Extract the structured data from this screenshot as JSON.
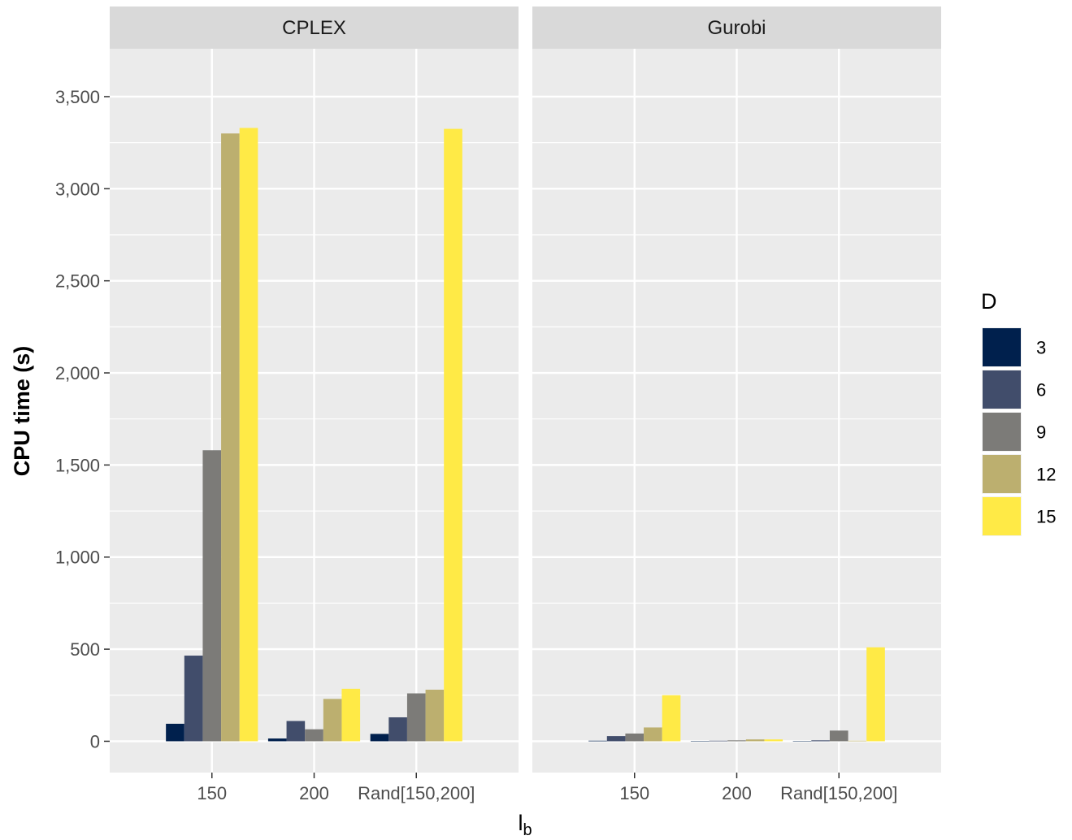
{
  "chart_data": {
    "type": "bar",
    "facets": [
      "CPLEX",
      "Gurobi"
    ],
    "categories": [
      "150",
      "200",
      "Rand[150,200]"
    ],
    "xlabel_main": "l",
    "xlabel_sub": "b",
    "ylabel": "CPU time (s)",
    "ylim": [
      -170,
      3760
    ],
    "yticks": [
      0,
      500,
      1000,
      1500,
      2000,
      2500,
      3000,
      3500
    ],
    "ytick_labels": [
      "0",
      "500",
      "1,000",
      "1,500",
      "2,000",
      "2,500",
      "3,000",
      "3,500"
    ],
    "grid": true,
    "legend": {
      "title": "D",
      "position": "right",
      "entries": [
        "3",
        "6",
        "9",
        "12",
        "15"
      ]
    },
    "colors": [
      "#00204D",
      "#414D6B",
      "#7C7B78",
      "#BCAF6F",
      "#FFEA46"
    ],
    "series": [
      {
        "name": "3",
        "values": {
          "CPLEX": [
            95,
            15,
            40
          ],
          "Gurobi": [
            3,
            2,
            2
          ]
        }
      },
      {
        "name": "6",
        "values": {
          "CPLEX": [
            465,
            110,
            130
          ],
          "Gurobi": [
            28,
            3,
            5
          ]
        }
      },
      {
        "name": "9",
        "values": {
          "CPLEX": [
            1580,
            65,
            260
          ],
          "Gurobi": [
            42,
            5,
            58
          ]
        }
      },
      {
        "name": "12",
        "values": {
          "CPLEX": [
            3300,
            230,
            280
          ],
          "Gurobi": [
            75,
            10,
            3
          ]
        }
      },
      {
        "name": "15",
        "values": {
          "CPLEX": [
            3330,
            285,
            3325
          ],
          "Gurobi": [
            250,
            10,
            510
          ]
        }
      }
    ]
  }
}
